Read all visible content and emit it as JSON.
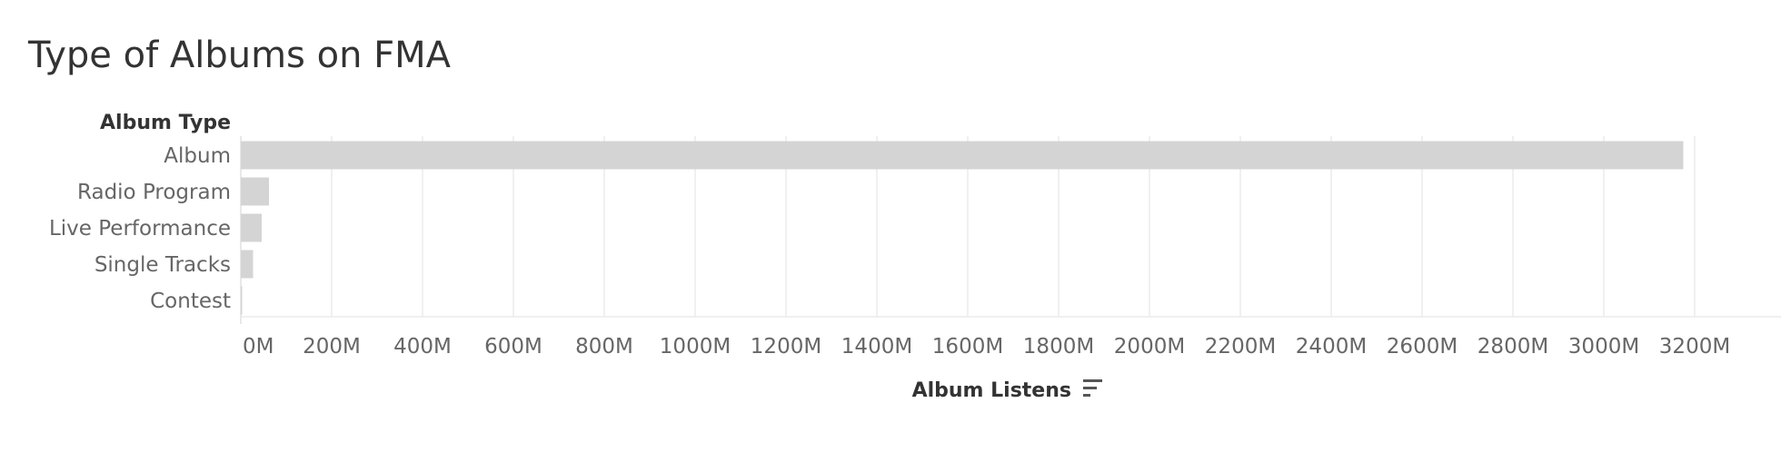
{
  "chart_data": {
    "type": "bar",
    "orientation": "horizontal",
    "title": "Type of Albums on FMA",
    "category_header": "Album Type",
    "xlabel": "Album Listens",
    "categories": [
      "Album",
      "Radio Program",
      "Live Performance",
      "Single Tracks",
      "Contest"
    ],
    "values": [
      3175000000,
      62000000,
      46000000,
      27000000,
      2000000
    ],
    "xlim": [
      0,
      3250000000
    ],
    "tick_values": [
      0,
      200000000,
      400000000,
      600000000,
      800000000,
      1000000000,
      1200000000,
      1400000000,
      1600000000,
      1800000000,
      2000000000,
      2200000000,
      2400000000,
      2600000000,
      2800000000,
      3000000000,
      3200000000
    ],
    "tick_labels": [
      "0M",
      "200M",
      "400M",
      "600M",
      "800M",
      "1000M",
      "1200M",
      "1400M",
      "1600M",
      "1800M",
      "2000M",
      "2200M",
      "2400M",
      "2600M",
      "2800M",
      "3000M",
      "3200M"
    ],
    "bar_color": "#d4d4d4",
    "grid": true,
    "gridline_color": "#ececec",
    "sort_icon": "sort-descending-icon"
  }
}
